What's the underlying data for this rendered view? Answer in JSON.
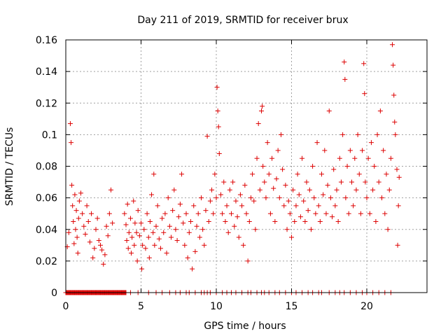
{
  "chart_data": {
    "type": "scatter",
    "title": "Day 211 of 2019, SRMTID for receiver brux",
    "xlabel": "GPS time / hours",
    "ylabel": "SRMTID / TECUs",
    "xlim": [
      0,
      24
    ],
    "ylim": [
      0,
      0.16
    ],
    "xticks": [
      0,
      5,
      10,
      15,
      20
    ],
    "yticks": [
      0,
      0.02,
      0.04,
      0.06,
      0.08,
      0.1,
      0.12,
      0.14,
      0.16
    ],
    "xtick_labels": [
      "0",
      "5",
      "10",
      "15",
      "20"
    ],
    "ytick_labels": [
      "0",
      "0.02",
      "0.04",
      "0.06",
      "0.08",
      "0.1",
      "0.12",
      "0.14",
      "0.16"
    ],
    "grid": true,
    "marker": "+",
    "color": "#dd0000",
    "series": [
      {
        "name": "SRMTID",
        "points": [
          [
            0.1,
            0.029
          ],
          [
            0.2,
            0.038
          ],
          [
            0.3,
            0.107
          ],
          [
            0.35,
            0.095
          ],
          [
            0.4,
            0.068
          ],
          [
            0.45,
            0.055
          ],
          [
            0.5,
            0.045
          ],
          [
            0.55,
            0.031
          ],
          [
            0.6,
            0.062
          ],
          [
            0.65,
            0.04
          ],
          [
            0.7,
            0.052
          ],
          [
            0.75,
            0.035
          ],
          [
            0.8,
            0.025
          ],
          [
            0.85,
            0.047
          ],
          [
            0.9,
            0.058
          ],
          [
            1.0,
            0.063
          ],
          [
            1.1,
            0.05
          ],
          [
            1.2,
            0.042
          ],
          [
            1.3,
            0.037
          ],
          [
            1.4,
            0.055
          ],
          [
            1.5,
            0.045
          ],
          [
            1.6,
            0.032
          ],
          [
            1.7,
            0.05
          ],
          [
            1.8,
            0.022
          ],
          [
            1.9,
            0.028
          ],
          [
            2.0,
            0.04
          ],
          [
            2.1,
            0.047
          ],
          [
            2.2,
            0.033
          ],
          [
            2.3,
            0.03
          ],
          [
            2.4,
            0.027
          ],
          [
            2.5,
            0.018
          ],
          [
            2.6,
            0.024
          ],
          [
            2.7,
            0.042
          ],
          [
            2.8,
            0.036
          ],
          [
            2.9,
            0.05
          ],
          [
            3.0,
            0.065
          ],
          [
            3.1,
            0.044
          ],
          [
            3.9,
            0.05
          ],
          [
            4.0,
            0.043
          ],
          [
            4.05,
            0.033
          ],
          [
            4.1,
            0.056
          ],
          [
            4.15,
            0.028
          ],
          [
            4.2,
            0.038
          ],
          [
            4.3,
            0.047
          ],
          [
            4.35,
            0.025
          ],
          [
            4.4,
            0.035
          ],
          [
            4.5,
            0.058
          ],
          [
            4.55,
            0.03
          ],
          [
            4.6,
            0.044
          ],
          [
            4.7,
            0.038
          ],
          [
            4.75,
            0.02
          ],
          [
            4.8,
            0.052
          ],
          [
            4.9,
            0.036
          ],
          [
            5.0,
            0.044
          ],
          [
            5.05,
            0.015
          ],
          [
            5.1,
            0.03
          ],
          [
            5.2,
            0.04
          ],
          [
            5.3,
            0.028
          ],
          [
            5.4,
            0.05
          ],
          [
            5.5,
            0.035
          ],
          [
            5.55,
            0.022
          ],
          [
            5.6,
            0.045
          ],
          [
            5.7,
            0.062
          ],
          [
            5.8,
            0.038
          ],
          [
            5.85,
            0.075
          ],
          [
            5.9,
            0.03
          ],
          [
            6.0,
            0.042
          ],
          [
            6.1,
            0.055
          ],
          [
            6.2,
            0.034
          ],
          [
            6.3,
            0.028
          ],
          [
            6.4,
            0.047
          ],
          [
            6.5,
            0.038
          ],
          [
            6.6,
            0.05
          ],
          [
            6.7,
            0.025
          ],
          [
            6.8,
            0.06
          ],
          [
            6.9,
            0.042
          ],
          [
            7.0,
            0.035
          ],
          [
            7.1,
            0.052
          ],
          [
            7.2,
            0.065
          ],
          [
            7.3,
            0.04
          ],
          [
            7.4,
            0.033
          ],
          [
            7.5,
            0.048
          ],
          [
            7.6,
            0.056
          ],
          [
            7.7,
            0.075
          ],
          [
            7.8,
            0.044
          ],
          [
            7.9,
            0.03
          ],
          [
            8.0,
            0.05
          ],
          [
            8.1,
            0.022
          ],
          [
            8.2,
            0.038
          ],
          [
            8.3,
            0.045
          ],
          [
            8.4,
            0.015
          ],
          [
            8.5,
            0.055
          ],
          [
            8.6,
            0.026
          ],
          [
            8.7,
            0.042
          ],
          [
            8.8,
            0.05
          ],
          [
            8.9,
            0.035
          ],
          [
            9.0,
            0.06
          ],
          [
            9.1,
            0.04
          ],
          [
            9.2,
            0.03
          ],
          [
            9.3,
            0.052
          ],
          [
            9.4,
            0.099
          ],
          [
            9.5,
            0.045
          ],
          [
            9.6,
            0.058
          ],
          [
            9.7,
            0.065
          ],
          [
            9.8,
            0.05
          ],
          [
            9.9,
            0.075
          ],
          [
            10.0,
            0.06
          ],
          [
            10.05,
            0.13
          ],
          [
            10.1,
            0.115
          ],
          [
            10.15,
            0.105
          ],
          [
            10.2,
            0.088
          ],
          [
            10.3,
            0.062
          ],
          [
            10.4,
            0.05
          ],
          [
            10.5,
            0.07
          ],
          [
            10.6,
            0.045
          ],
          [
            10.7,
            0.055
          ],
          [
            10.8,
            0.038
          ],
          [
            10.9,
            0.065
          ],
          [
            11.0,
            0.05
          ],
          [
            11.1,
            0.07
          ],
          [
            11.2,
            0.042
          ],
          [
            11.3,
            0.058
          ],
          [
            11.4,
            0.048
          ],
          [
            11.5,
            0.035
          ],
          [
            11.6,
            0.062
          ],
          [
            11.7,
            0.055
          ],
          [
            11.8,
            0.03
          ],
          [
            11.9,
            0.068
          ],
          [
            12.0,
            0.05
          ],
          [
            12.1,
            0.02
          ],
          [
            12.2,
            0.045
          ],
          [
            12.3,
            0.06
          ],
          [
            12.4,
            0.075
          ],
          [
            12.5,
            0.058
          ],
          [
            12.6,
            0.04
          ],
          [
            12.7,
            0.085
          ],
          [
            12.8,
            0.107
          ],
          [
            12.9,
            0.065
          ],
          [
            13.0,
            0.115
          ],
          [
            13.05,
            0.118
          ],
          [
            13.1,
            0.08
          ],
          [
            13.2,
            0.07
          ],
          [
            13.3,
            0.06
          ],
          [
            13.4,
            0.095
          ],
          [
            13.5,
            0.075
          ],
          [
            13.6,
            0.05
          ],
          [
            13.7,
            0.085
          ],
          [
            13.8,
            0.066
          ],
          [
            13.9,
            0.045
          ],
          [
            14.0,
            0.072
          ],
          [
            14.1,
            0.09
          ],
          [
            14.2,
            0.06
          ],
          [
            14.3,
            0.1
          ],
          [
            14.4,
            0.078
          ],
          [
            14.5,
            0.055
          ],
          [
            14.6,
            0.068
          ],
          [
            14.7,
            0.04
          ],
          [
            14.8,
            0.058
          ],
          [
            14.9,
            0.05
          ],
          [
            15.0,
            0.035
          ],
          [
            15.1,
            0.065
          ],
          [
            15.2,
            0.045
          ],
          [
            15.3,
            0.055
          ],
          [
            15.4,
            0.075
          ],
          [
            15.5,
            0.062
          ],
          [
            15.6,
            0.048
          ],
          [
            15.7,
            0.085
          ],
          [
            15.8,
            0.058
          ],
          [
            15.9,
            0.045
          ],
          [
            16.0,
            0.07
          ],
          [
            16.1,
            0.052
          ],
          [
            16.2,
            0.065
          ],
          [
            16.3,
            0.04
          ],
          [
            16.4,
            0.08
          ],
          [
            16.5,
            0.06
          ],
          [
            16.6,
            0.05
          ],
          [
            16.7,
            0.095
          ],
          [
            16.8,
            0.055
          ],
          [
            16.9,
            0.045
          ],
          [
            17.0,
            0.075
          ],
          [
            17.1,
            0.062
          ],
          [
            17.2,
            0.09
          ],
          [
            17.3,
            0.05
          ],
          [
            17.4,
            0.068
          ],
          [
            17.5,
            0.115
          ],
          [
            17.6,
            0.06
          ],
          [
            17.7,
            0.048
          ],
          [
            17.8,
            0.078
          ],
          [
            17.9,
            0.055
          ],
          [
            18.0,
            0.065
          ],
          [
            18.1,
            0.045
          ],
          [
            18.2,
            0.085
          ],
          [
            18.3,
            0.07
          ],
          [
            18.4,
            0.1
          ],
          [
            18.5,
            0.146
          ],
          [
            18.55,
            0.135
          ],
          [
            18.6,
            0.06
          ],
          [
            18.7,
            0.08
          ],
          [
            18.8,
            0.05
          ],
          [
            18.9,
            0.09
          ],
          [
            19.0,
            0.07
          ],
          [
            19.1,
            0.055
          ],
          [
            19.2,
            0.085
          ],
          [
            19.3,
            0.065
          ],
          [
            19.4,
            0.1
          ],
          [
            19.5,
            0.075
          ],
          [
            19.6,
            0.05
          ],
          [
            19.7,
            0.09
          ],
          [
            19.8,
            0.145
          ],
          [
            19.85,
            0.126
          ],
          [
            19.9,
            0.07
          ],
          [
            20.0,
            0.06
          ],
          [
            20.1,
            0.085
          ],
          [
            20.2,
            0.05
          ],
          [
            20.3,
            0.095
          ],
          [
            20.4,
            0.065
          ],
          [
            20.5,
            0.08
          ],
          [
            20.6,
            0.045
          ],
          [
            20.7,
            0.1
          ],
          [
            20.8,
            0.07
          ],
          [
            20.9,
            0.115
          ],
          [
            21.0,
            0.06
          ],
          [
            21.1,
            0.09
          ],
          [
            21.2,
            0.05
          ],
          [
            21.3,
            0.075
          ],
          [
            21.4,
            0.04
          ],
          [
            21.5,
            0.065
          ],
          [
            21.6,
            0.085
          ],
          [
            21.7,
            0.157
          ],
          [
            21.75,
            0.144
          ],
          [
            21.8,
            0.125
          ],
          [
            21.85,
            0.108
          ],
          [
            21.9,
            0.1
          ],
          [
            22.0,
            0.078
          ],
          [
            22.05,
            0.03
          ],
          [
            22.1,
            0.055
          ],
          [
            22.15,
            0.073
          ]
        ]
      }
    ],
    "zero_ranges": [
      [
        0.0,
        4.0
      ]
    ],
    "zero_points": [
      4.3,
      4.8,
      5.5,
      6.0,
      6.4,
      6.9,
      7.3,
      7.6,
      8.0,
      8.2,
      8.6,
      9.0,
      9.2,
      9.4,
      9.6,
      10.0,
      10.4,
      10.7,
      11.0,
      11.3,
      11.7,
      12.1,
      12.3,
      12.7,
      13.0,
      13.2,
      13.5,
      13.9,
      14.2,
      14.6,
      15.0,
      15.3,
      15.7,
      16.1,
      16.4,
      16.8,
      17.0,
      17.5,
      17.9,
      18.2,
      18.5,
      18.9,
      19.3,
      19.7,
      20.0,
      20.4,
      20.8,
      21.2,
      21.6
    ]
  }
}
